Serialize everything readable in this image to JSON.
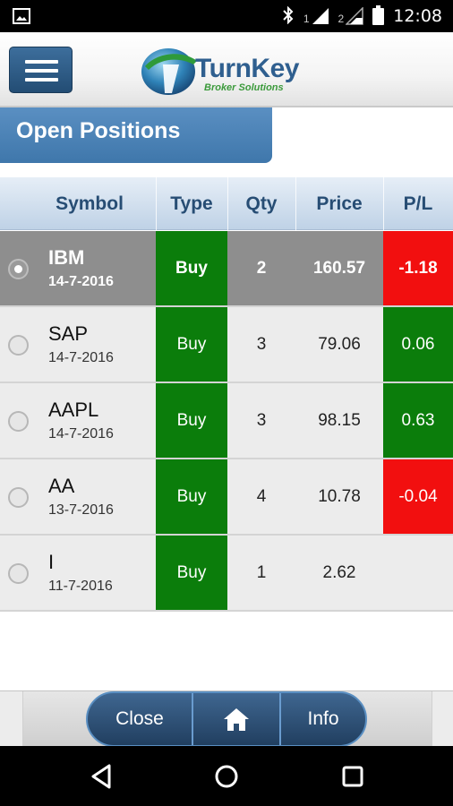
{
  "status_bar": {
    "time": "12:08",
    "sim1": "1",
    "sim2": "2",
    "icons": [
      "image-notification-icon",
      "bluetooth-icon",
      "signal-icon",
      "signal-icon",
      "battery-icon"
    ]
  },
  "header": {
    "brand": "TurnKey",
    "tagline": "Broker Solutions"
  },
  "section_title": "Open Positions",
  "table": {
    "columns": [
      "Symbol",
      "Type",
      "Qty",
      "Price",
      "P/L"
    ],
    "rows": [
      {
        "symbol": "IBM",
        "date": "14-7-2016",
        "type": "Buy",
        "qty": "2",
        "price": "160.57",
        "pl": "-1.18",
        "pl_status": "negative",
        "selected": true
      },
      {
        "symbol": "SAP",
        "date": "14-7-2016",
        "type": "Buy",
        "qty": "3",
        "price": "79.06",
        "pl": "0.06",
        "pl_status": "positive",
        "selected": false
      },
      {
        "symbol": "AAPL",
        "date": "14-7-2016",
        "type": "Buy",
        "qty": "3",
        "price": "98.15",
        "pl": "0.63",
        "pl_status": "positive",
        "selected": false
      },
      {
        "symbol": "AA",
        "date": "13-7-2016",
        "type": "Buy",
        "qty": "4",
        "price": "10.78",
        "pl": "-0.04",
        "pl_status": "negative",
        "selected": false
      },
      {
        "symbol": "I",
        "date": "11-7-2016",
        "type": "Buy",
        "qty": "1",
        "price": "2.62",
        "pl": "",
        "pl_status": "none",
        "selected": false
      }
    ]
  },
  "footer": {
    "close_label": "Close",
    "home_icon": "home-icon",
    "info_label": "Info"
  },
  "colors": {
    "accent_blue": "#3f77ab",
    "buy_green": "#0b7d0b",
    "loss_red": "#f20f0f",
    "selected_row": "#8e8e8e"
  }
}
